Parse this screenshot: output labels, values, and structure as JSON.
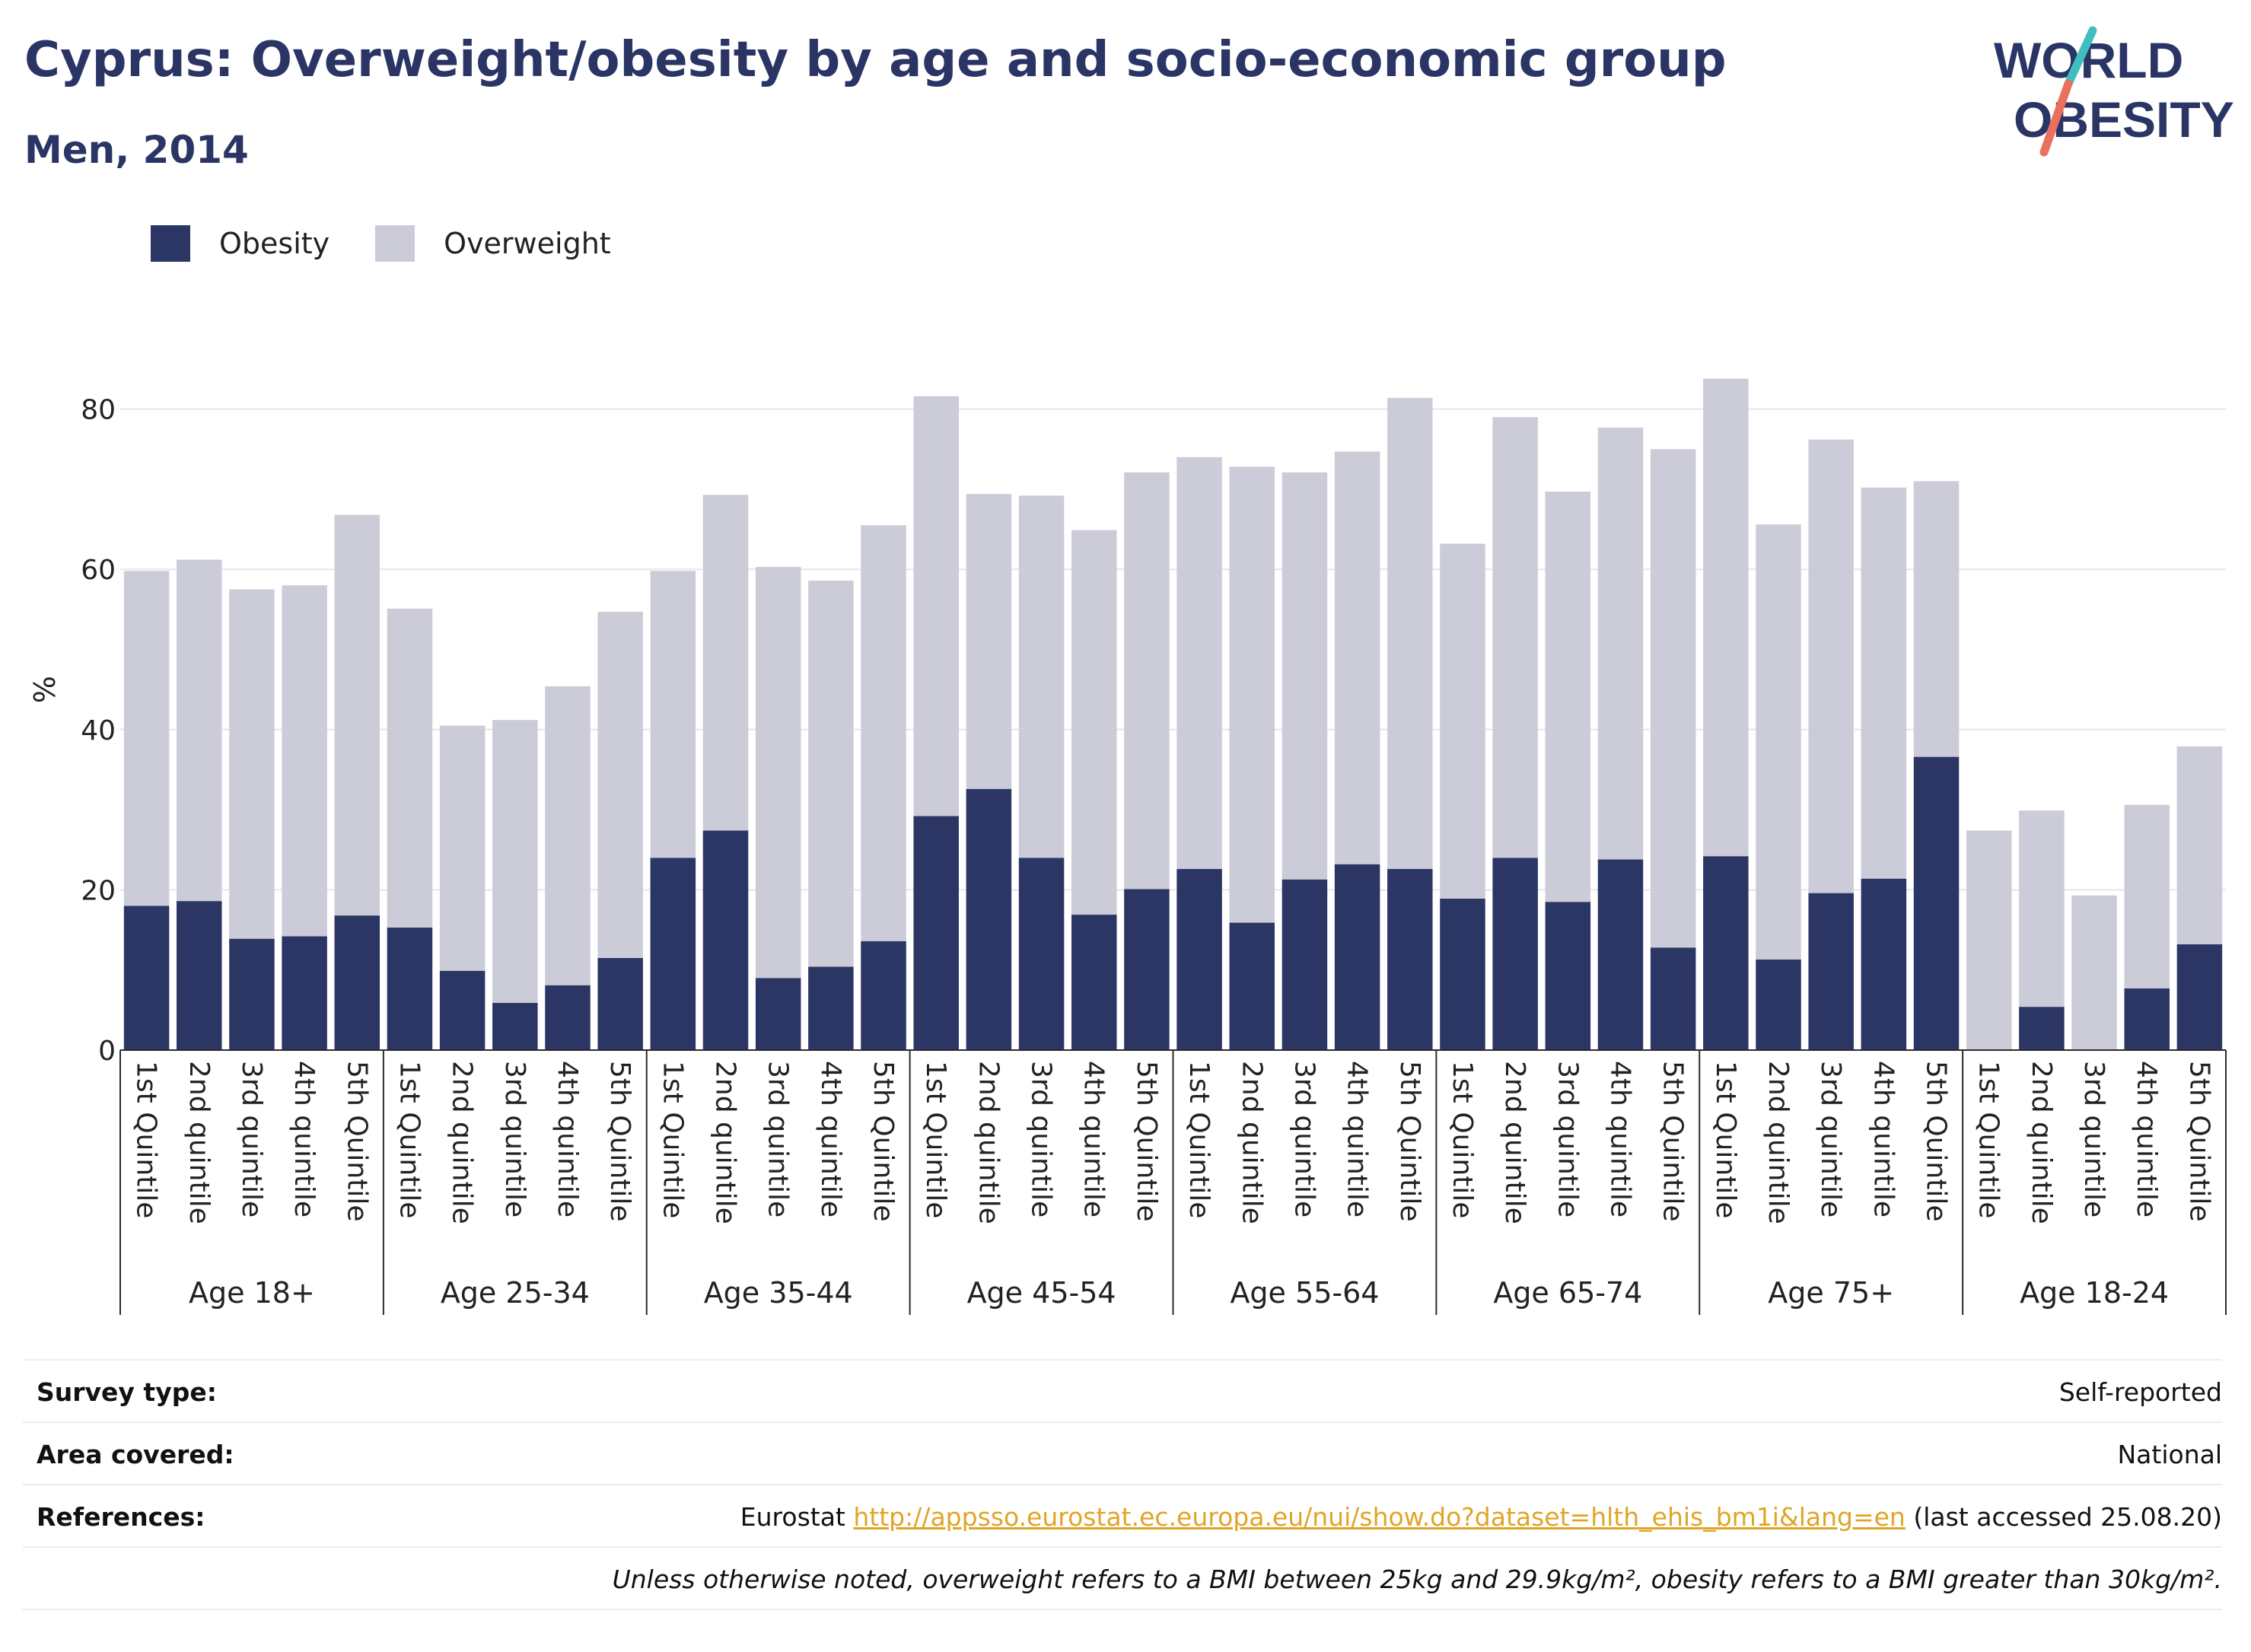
{
  "title": "Cyprus: Overweight/obesity by age and socio-economic group",
  "subtitle": "Men, 2014",
  "logo": {
    "line1": "WORLD",
    "line2": "OBESITY"
  },
  "colors": {
    "obesity": "#2b3664",
    "overweight": "#cbccd8",
    "title": "#2b3565",
    "link": "#e0a526",
    "logo_teal": "#3fbfbf",
    "logo_coral": "#e8705c"
  },
  "legend": [
    {
      "label": "Obesity"
    },
    {
      "label": "Overweight"
    }
  ],
  "chart_data": {
    "type": "bar",
    "stacked": true,
    "ylabel": "%",
    "ylim": [
      0,
      90
    ],
    "yticks": [
      0,
      20,
      40,
      60,
      80
    ],
    "grid": true,
    "legend_position": "top-left",
    "groups": [
      {
        "label": "Age 18+",
        "categories": [
          "1st Quintile",
          "2nd quintile",
          "3rd quintile",
          "4th quintile",
          "5th Quintile"
        ]
      },
      {
        "label": "Age 25-34",
        "categories": [
          "1st Quintile",
          "2nd quintile",
          "3rd quintile",
          "4th quintile",
          "5th Quintile"
        ]
      },
      {
        "label": "Age 35-44",
        "categories": [
          "1st Quintile",
          "2nd quintile",
          "3rd quintile",
          "4th quintile",
          "5th Quintile"
        ]
      },
      {
        "label": "Age 45-54",
        "categories": [
          "1st Quintile",
          "2nd quintile",
          "3rd quintile",
          "4th quintile",
          "5th Quintile"
        ]
      },
      {
        "label": "Age 55-64",
        "categories": [
          "1st Quintile",
          "2nd quintile",
          "3rd quintile",
          "4th quintile",
          "5th Quintile"
        ]
      },
      {
        "label": "Age 65-74",
        "categories": [
          "1st Quintile",
          "2nd quintile",
          "3rd quintile",
          "4th quintile",
          "5th Quintile"
        ]
      },
      {
        "label": "Age 75+",
        "categories": [
          "1st Quintile",
          "2nd quintile",
          "3rd quintile",
          "4th quintile",
          "5th Quintile"
        ]
      },
      {
        "label": "Age 18-24",
        "categories": [
          "1st Quintile",
          "2nd quintile",
          "3rd quintile",
          "4th quintile",
          "5th Quintile"
        ]
      }
    ],
    "series": [
      {
        "name": "Obesity",
        "values": [
          18.0,
          18.6,
          13.9,
          14.2,
          16.8,
          15.3,
          9.9,
          5.9,
          8.1,
          11.5,
          24.0,
          27.4,
          9.0,
          10.4,
          13.6,
          29.2,
          32.6,
          24.0,
          16.9,
          20.1,
          22.6,
          15.9,
          21.3,
          23.2,
          22.6,
          18.9,
          24.0,
          18.5,
          23.8,
          12.8,
          24.2,
          11.3,
          19.6,
          21.4,
          36.6,
          0,
          5.4,
          0,
          7.7,
          13.2
        ]
      },
      {
        "name": "Overweight",
        "values": [
          41.8,
          42.6,
          43.6,
          43.8,
          50.0,
          39.8,
          30.6,
          35.3,
          37.3,
          43.2,
          35.8,
          41.9,
          51.3,
          48.2,
          51.9,
          52.4,
          36.8,
          45.2,
          48.0,
          52.0,
          51.4,
          56.9,
          50.8,
          51.5,
          58.8,
          44.3,
          55.0,
          51.2,
          53.9,
          62.2,
          59.6,
          54.3,
          56.6,
          48.8,
          34.4,
          27.4,
          24.5,
          19.3,
          22.9,
          24.7
        ]
      }
    ]
  },
  "info": {
    "survey_label": "Survey type:",
    "survey_value": "Self-reported",
    "area_label": "Area covered:",
    "area_value": "National",
    "references_label": "References:",
    "ref_prefix": "Eurostat",
    "ref_link": "http://appsso.eurostat.ec.europa.eu/nui/show.do?dataset=hlth_ehis_bm1i&lang=en",
    "ref_suffix": "(last accessed 25.08.20)",
    "note": "Unless otherwise noted, overweight refers to a BMI between 25kg and 29.9kg/m², obesity refers to a BMI greater than 30kg/m²."
  }
}
